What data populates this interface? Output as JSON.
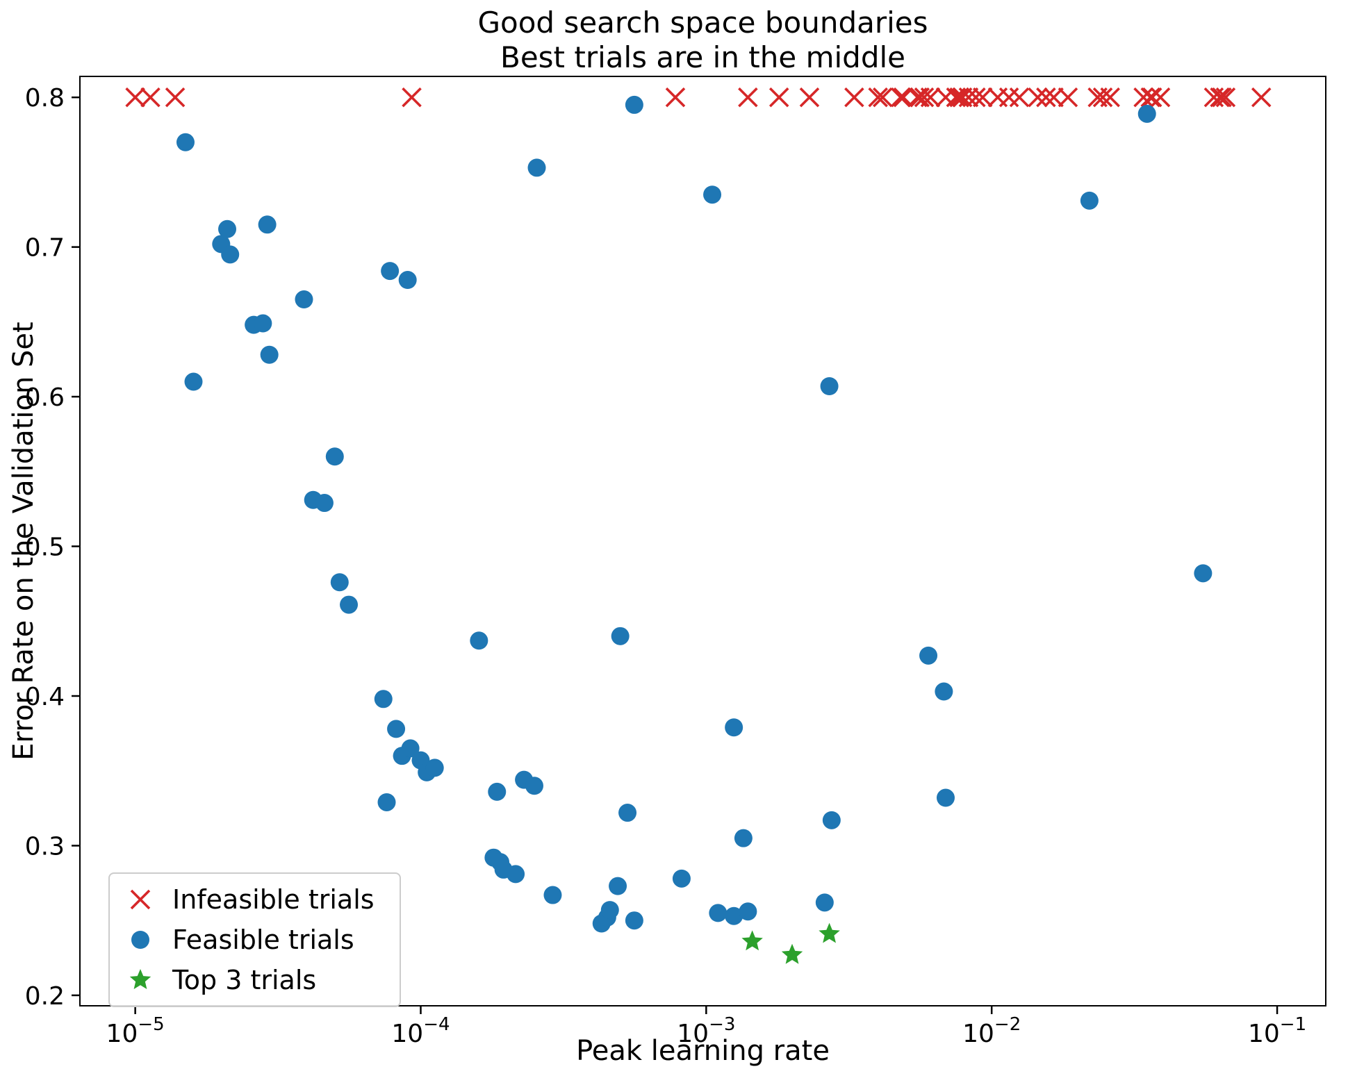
{
  "chart_data": {
    "type": "scatter",
    "title": "Good search space boundaries\nBest trials are in the middle",
    "title_line1": "Good search space boundaries",
    "title_line2": "Best trials are in the middle",
    "xlabel": "Peak learning rate",
    "ylabel": "Error Rate on the Validation Set",
    "x_scale": "log",
    "grid": false,
    "xlim": [
      6.4e-06,
      0.148
    ],
    "ylim": [
      0.193,
      0.814
    ],
    "x_ticks": [
      1e-05,
      0.0001,
      0.001,
      0.01,
      0.1
    ],
    "y_ticks": [
      0.2,
      0.3,
      0.4,
      0.5,
      0.6,
      0.7,
      0.8
    ],
    "legend": {
      "position": "lower left"
    },
    "series": [
      {
        "name": "Infeasible trials",
        "slug": "infeasible-trial",
        "marker": "x",
        "color": "#d62728",
        "x": [
          1e-05,
          1.13e-05,
          1.38e-05,
          9.3e-05,
          0.00078,
          0.0014,
          0.0018,
          0.0023,
          0.0033,
          0.004,
          0.00415,
          0.0048,
          0.0049,
          0.0055,
          0.0056,
          0.0058,
          0.0061,
          0.0069,
          0.0075,
          0.0077,
          0.0079,
          0.0083,
          0.0088,
          0.0093,
          0.0105,
          0.0115,
          0.0125,
          0.0145,
          0.0155,
          0.0165,
          0.0185,
          0.0235,
          0.0245,
          0.026,
          0.034,
          0.036,
          0.0365,
          0.039,
          0.06,
          0.063,
          0.064,
          0.066,
          0.088
        ],
        "y": 0.8
      },
      {
        "name": "Feasible trials",
        "slug": "feasible-trial",
        "marker": "circle",
        "color": "#1f77b4",
        "x": [
          1.5e-05,
          1.6e-05,
          2e-05,
          2.1e-05,
          2.15e-05,
          2.6e-05,
          2.8e-05,
          2.9e-05,
          2.95e-05,
          3.9e-05,
          4.2e-05,
          4.6e-05,
          5e-05,
          5.2e-05,
          5.6e-05,
          7.8e-05,
          9e-05,
          7.4e-05,
          7.6e-05,
          8.2e-05,
          8.6e-05,
          9.2e-05,
          0.0001,
          0.000105,
          0.000112,
          0.00016,
          0.000185,
          0.00023,
          0.00025,
          0.00018,
          0.00019,
          0.000195,
          0.000215,
          0.00029,
          0.000255,
          0.00043,
          0.00045,
          0.00046,
          0.00049,
          0.00056,
          0.00053,
          0.0005,
          0.00056,
          0.00105,
          0.00082,
          0.0011,
          0.00125,
          0.0014,
          0.00125,
          0.00135,
          0.0027,
          0.0026,
          0.00275,
          0.006,
          0.0068,
          0.0069,
          0.022,
          0.035,
          0.055
        ],
        "y": [
          0.77,
          0.61,
          0.702,
          0.712,
          0.695,
          0.648,
          0.649,
          0.715,
          0.628,
          0.665,
          0.531,
          0.529,
          0.56,
          0.476,
          0.461,
          0.684,
          0.678,
          0.398,
          0.329,
          0.378,
          0.36,
          0.365,
          0.357,
          0.349,
          0.352,
          0.437,
          0.336,
          0.344,
          0.34,
          0.292,
          0.289,
          0.284,
          0.281,
          0.267,
          0.753,
          0.248,
          0.252,
          0.257,
          0.273,
          0.25,
          0.322,
          0.44,
          0.795,
          0.735,
          0.278,
          0.255,
          0.253,
          0.256,
          0.379,
          0.305,
          0.607,
          0.262,
          0.317,
          0.427,
          0.403,
          0.332,
          0.731,
          0.789,
          0.482
        ]
      },
      {
        "name": "Top 3 trials",
        "slug": "top-3-trial",
        "marker": "star",
        "color": "#2ca02c",
        "x": [
          0.00145,
          0.002,
          0.0027
        ],
        "y": [
          0.236,
          0.227,
          0.241
        ]
      }
    ]
  }
}
